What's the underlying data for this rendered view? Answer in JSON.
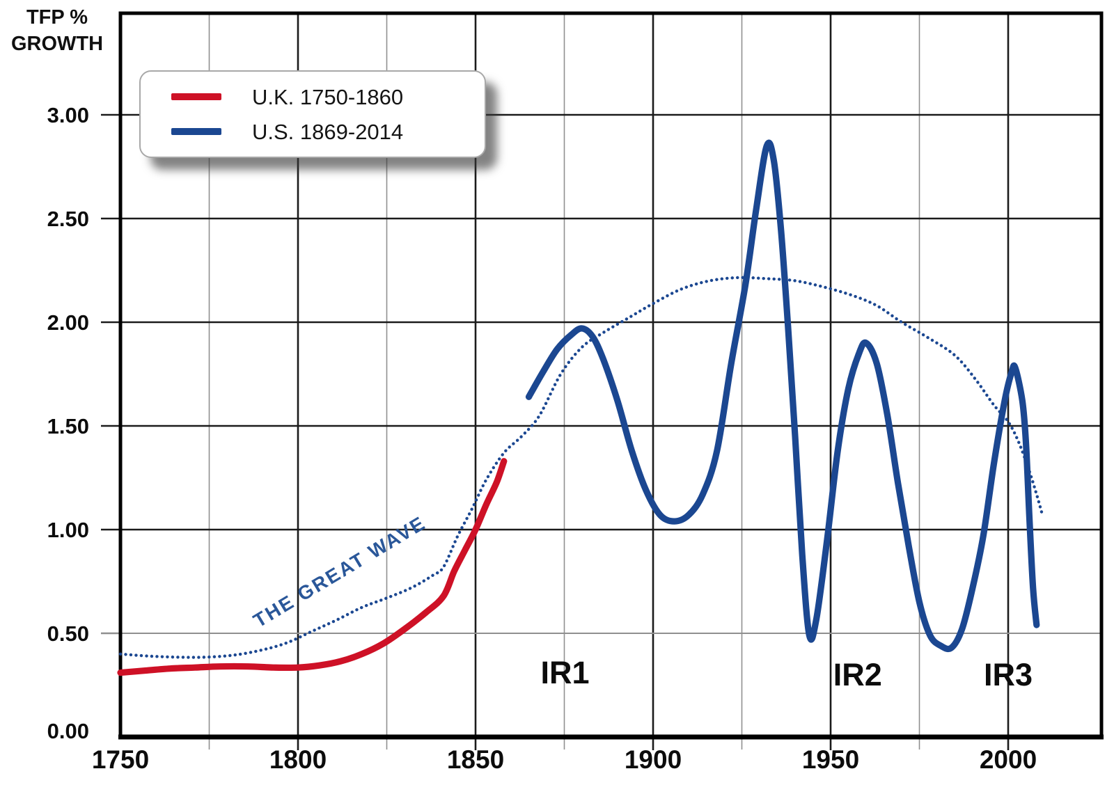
{
  "axis_title": "TFP %\nGROWTH",
  "legend": {
    "items": [
      {
        "label": "U.K. 1750-1860",
        "color": "#ce1126"
      },
      {
        "label": "U.S. 1869-2014",
        "color": "#1b4791"
      }
    ]
  },
  "colors": {
    "uk_red": "#ce1126",
    "us_navy": "#1b4791",
    "wave_dotted": "#1b4791",
    "wave_text": "#2a5799",
    "grid_major": "#1b1b1b",
    "grid_minor": "#8f8f8f",
    "border": "#000000",
    "background": "#ffffff",
    "label_text": "#0c0c0c"
  },
  "chart_data": {
    "type": "line",
    "title": "",
    "xlabel": "",
    "ylabel": "TFP % GROWTH",
    "grid": true,
    "legend_position": "top-left",
    "x_ticks_major": [
      1750,
      1800,
      1850,
      1900,
      1950,
      2000
    ],
    "x_gridlines_major": [
      1800,
      1850,
      1900,
      1950,
      2000
    ],
    "x_gridlines_minor": [
      1775,
      1825,
      1875,
      1925,
      1975
    ],
    "y_ticks": [
      0.0,
      0.5,
      1.0,
      1.5,
      2.0,
      2.5,
      3.0
    ],
    "x_range_drawn": [
      1750,
      2026
    ],
    "y_range_drawn": [
      0,
      3.49
    ],
    "series": [
      {
        "name": "U.K. 1750-1860",
        "style": "solid",
        "color": "#ce1126",
        "points": [
          [
            1750,
            0.31
          ],
          [
            1757,
            0.32
          ],
          [
            1764,
            0.33
          ],
          [
            1771,
            0.335
          ],
          [
            1778,
            0.34
          ],
          [
            1786,
            0.34
          ],
          [
            1793,
            0.335
          ],
          [
            1800,
            0.335
          ],
          [
            1806,
            0.345
          ],
          [
            1812,
            0.365
          ],
          [
            1818,
            0.4
          ],
          [
            1824,
            0.45
          ],
          [
            1830,
            0.52
          ],
          [
            1836,
            0.6
          ],
          [
            1841,
            0.68
          ],
          [
            1844,
            0.8
          ],
          [
            1847,
            0.9
          ],
          [
            1850,
            1.0
          ],
          [
            1853,
            1.12
          ],
          [
            1856,
            1.23
          ],
          [
            1858,
            1.33
          ]
        ]
      },
      {
        "name": "U.S. 1869-2014",
        "style": "solid",
        "color": "#1b4791",
        "points": [
          [
            1865,
            1.64
          ],
          [
            1869,
            1.76
          ],
          [
            1873,
            1.87
          ],
          [
            1877,
            1.94
          ],
          [
            1880,
            1.97
          ],
          [
            1883,
            1.93
          ],
          [
            1886,
            1.82
          ],
          [
            1890,
            1.62
          ],
          [
            1894,
            1.38
          ],
          [
            1898,
            1.19
          ],
          [
            1902,
            1.07
          ],
          [
            1906,
            1.04
          ],
          [
            1910,
            1.07
          ],
          [
            1914,
            1.17
          ],
          [
            1918,
            1.38
          ],
          [
            1922,
            1.8
          ],
          [
            1926,
            2.18
          ],
          [
            1929,
            2.54
          ],
          [
            1932,
            2.85
          ],
          [
            1934,
            2.78
          ],
          [
            1936,
            2.45
          ],
          [
            1938,
            1.98
          ],
          [
            1940,
            1.45
          ],
          [
            1942,
            0.88
          ],
          [
            1944,
            0.49
          ],
          [
            1946,
            0.57
          ],
          [
            1949,
            0.95
          ],
          [
            1952,
            1.38
          ],
          [
            1955,
            1.68
          ],
          [
            1958,
            1.85
          ],
          [
            1960,
            1.9
          ],
          [
            1963,
            1.8
          ],
          [
            1966,
            1.55
          ],
          [
            1969,
            1.22
          ],
          [
            1972,
            0.92
          ],
          [
            1975,
            0.65
          ],
          [
            1978,
            0.49
          ],
          [
            1981,
            0.44
          ],
          [
            1984,
            0.43
          ],
          [
            1987,
            0.52
          ],
          [
            1990,
            0.72
          ],
          [
            1993,
            0.97
          ],
          [
            1996,
            1.32
          ],
          [
            1999,
            1.62
          ],
          [
            2001,
            1.76
          ],
          [
            2002,
            1.78
          ],
          [
            2004,
            1.62
          ],
          [
            2005,
            1.42
          ],
          [
            2006,
            1.05
          ],
          [
            2007,
            0.72
          ],
          [
            2008,
            0.54
          ]
        ]
      },
      {
        "name": "The Great Wave (trend envelope)",
        "style": "dotted",
        "color": "#1b4791",
        "points": [
          [
            1750,
            0.4
          ],
          [
            1758,
            0.39
          ],
          [
            1766,
            0.385
          ],
          [
            1774,
            0.385
          ],
          [
            1782,
            0.395
          ],
          [
            1790,
            0.42
          ],
          [
            1797,
            0.455
          ],
          [
            1804,
            0.51
          ],
          [
            1811,
            0.565
          ],
          [
            1818,
            0.625
          ],
          [
            1825,
            0.67
          ],
          [
            1832,
            0.72
          ],
          [
            1838,
            0.78
          ],
          [
            1841,
            0.82
          ],
          [
            1845,
            0.97
          ],
          [
            1849,
            1.1
          ],
          [
            1853,
            1.24
          ],
          [
            1858,
            1.37
          ],
          [
            1863,
            1.45
          ],
          [
            1868,
            1.55
          ],
          [
            1874,
            1.75
          ],
          [
            1880,
            1.88
          ],
          [
            1886,
            1.95
          ],
          [
            1893,
            2.02
          ],
          [
            1900,
            2.09
          ],
          [
            1908,
            2.16
          ],
          [
            1916,
            2.2
          ],
          [
            1924,
            2.215
          ],
          [
            1932,
            2.21
          ],
          [
            1940,
            2.2
          ],
          [
            1948,
            2.17
          ],
          [
            1956,
            2.13
          ],
          [
            1963,
            2.08
          ],
          [
            1970,
            2.0
          ],
          [
            1977,
            1.93
          ],
          [
            1985,
            1.84
          ],
          [
            1991,
            1.72
          ],
          [
            1996,
            1.6
          ],
          [
            2000,
            1.52
          ],
          [
            2003,
            1.42
          ],
          [
            2006,
            1.28
          ],
          [
            2008,
            1.17
          ],
          [
            2009.5,
            1.08
          ]
        ]
      }
    ],
    "annotations": [
      {
        "text": "IR1",
        "year": 1875.2,
        "value": 0.31
      },
      {
        "text": "IR2",
        "year": 1957.6,
        "value": 0.3
      },
      {
        "text": "IR3",
        "year": 2000.0,
        "value": 0.3
      }
    ],
    "wave_label": {
      "text": "THE GREAT WAVE",
      "year": 1811.8,
      "value": 0.795,
      "angle_deg": -31
    }
  }
}
